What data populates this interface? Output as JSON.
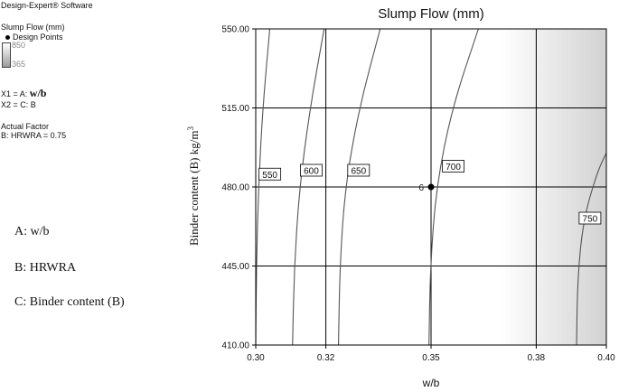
{
  "software": "Design-Expert® Software",
  "legend": {
    "response": "Slump Flow (mm)",
    "design_points_label": "Design Points",
    "high": "850",
    "low": "365"
  },
  "factors": {
    "x1_prefix": "X1 = A: ",
    "x1_name": "w/b",
    "x2": "X2 = C: B",
    "actual_factor_title": "Actual Factor",
    "actual_factor": "B: HRWRA = 0.75"
  },
  "notes": [
    "A: w/b",
    "B: HRWRA",
    "C: Binder content (B)"
  ],
  "chart_data": {
    "type": "contour",
    "title": "Slump Flow (mm)",
    "xlabel": "w/b",
    "ylabel": "Binder content (B) kg/m",
    "ylabel_sup": "3",
    "xlim": [
      0.3,
      0.4
    ],
    "ylim": [
      410,
      550
    ],
    "x_ticks": [
      0.3,
      0.32,
      0.35,
      0.38,
      0.4
    ],
    "x_tick_labels": [
      "0.30",
      "0.32",
      "0.35",
      "0.38",
      "0.40"
    ],
    "y_ticks": [
      410,
      445,
      480,
      515,
      550
    ],
    "y_tick_labels": [
      "410.00",
      "445.00",
      "480.00",
      "515.00",
      "550.00"
    ],
    "grid": true,
    "contours": [
      {
        "level": 550,
        "label": "550",
        "points": [
          [
            0.3,
            410
          ],
          [
            0.3002,
            445
          ],
          [
            0.3008,
            480
          ],
          [
            0.302,
            515
          ],
          [
            0.304,
            550
          ]
        ]
      },
      {
        "level": 600,
        "label": "600",
        "points": [
          [
            0.3105,
            410
          ],
          [
            0.311,
            445
          ],
          [
            0.3125,
            480
          ],
          [
            0.3155,
            515
          ],
          [
            0.3195,
            550
          ]
        ]
      },
      {
        "level": 650,
        "label": "650",
        "points": [
          [
            0.3236,
            410
          ],
          [
            0.324,
            445
          ],
          [
            0.3255,
            480
          ],
          [
            0.3295,
            515
          ],
          [
            0.3355,
            550
          ]
        ]
      },
      {
        "level": 700,
        "label": "700",
        "points": [
          [
            0.3494,
            410
          ],
          [
            0.3498,
            445
          ],
          [
            0.3515,
            480
          ],
          [
            0.356,
            515
          ],
          [
            0.3635,
            550
          ]
        ]
      },
      {
        "level": 750,
        "label": "750",
        "points": [
          [
            0.3915,
            410
          ],
          [
            0.3918,
            440
          ],
          [
            0.3935,
            466
          ],
          [
            0.3975,
            487
          ],
          [
            0.4,
            495
          ]
        ]
      }
    ],
    "contour_labels": [
      {
        "text": "550",
        "x": 0.3012,
        "y": 485.5
      },
      {
        "text": "600",
        "x": 0.313,
        "y": 487.2
      },
      {
        "text": "650",
        "x": 0.3265,
        "y": 487.2
      },
      {
        "text": "700",
        "x": 0.3535,
        "y": 489.0
      },
      {
        "text": "750",
        "x": 0.3925,
        "y": 466.0
      }
    ],
    "design_points": [
      {
        "x": 0.35,
        "y": 480,
        "label": "6"
      }
    ]
  }
}
